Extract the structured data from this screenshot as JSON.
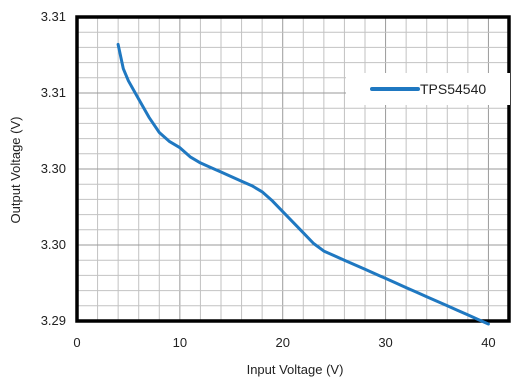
{
  "chart_data": {
    "type": "line",
    "xlabel": "Input Voltage (V)",
    "ylabel": "Output Voltage (V)",
    "xlim": [
      0,
      42
    ],
    "x_ticks": [
      0,
      10,
      20,
      30,
      40
    ],
    "x_tick_labels": [
      "0",
      "10",
      "20",
      "30",
      "40"
    ],
    "ylim": [
      3.29,
      3.31
    ],
    "y_ticks": [
      3.29,
      3.295,
      3.3,
      3.305,
      3.31
    ],
    "y_tick_labels": [
      "3.29",
      "3.30",
      "3.30",
      "3.31",
      "3.31"
    ],
    "grid": true,
    "legend_position": "top-right",
    "series": [
      {
        "name": "TPS54540",
        "color": "#1f78c1",
        "x": [
          4,
          4.5,
          5,
          6,
          7,
          8,
          9,
          10,
          11,
          12,
          13,
          14,
          15,
          16,
          17,
          18,
          19,
          20,
          21,
          22,
          23,
          24,
          25,
          26,
          27,
          28,
          29,
          30,
          31,
          32,
          33,
          34,
          35,
          36,
          37,
          38,
          39,
          40
        ],
        "y": [
          3.3082,
          3.3066,
          3.3058,
          3.3046,
          3.3034,
          3.3024,
          3.3018,
          3.3014,
          3.3008,
          3.3004,
          3.3001,
          3.2998,
          3.2995,
          3.2992,
          3.2989,
          3.2985,
          3.2979,
          3.2972,
          3.2965,
          3.2958,
          3.2951,
          3.2946,
          3.2943,
          3.294,
          3.2937,
          3.2934,
          3.2931,
          3.2928,
          3.2925,
          3.2922,
          3.2919,
          3.2916,
          3.2913,
          3.291,
          3.2907,
          3.2904,
          3.2901,
          3.2898
        ]
      }
    ]
  }
}
